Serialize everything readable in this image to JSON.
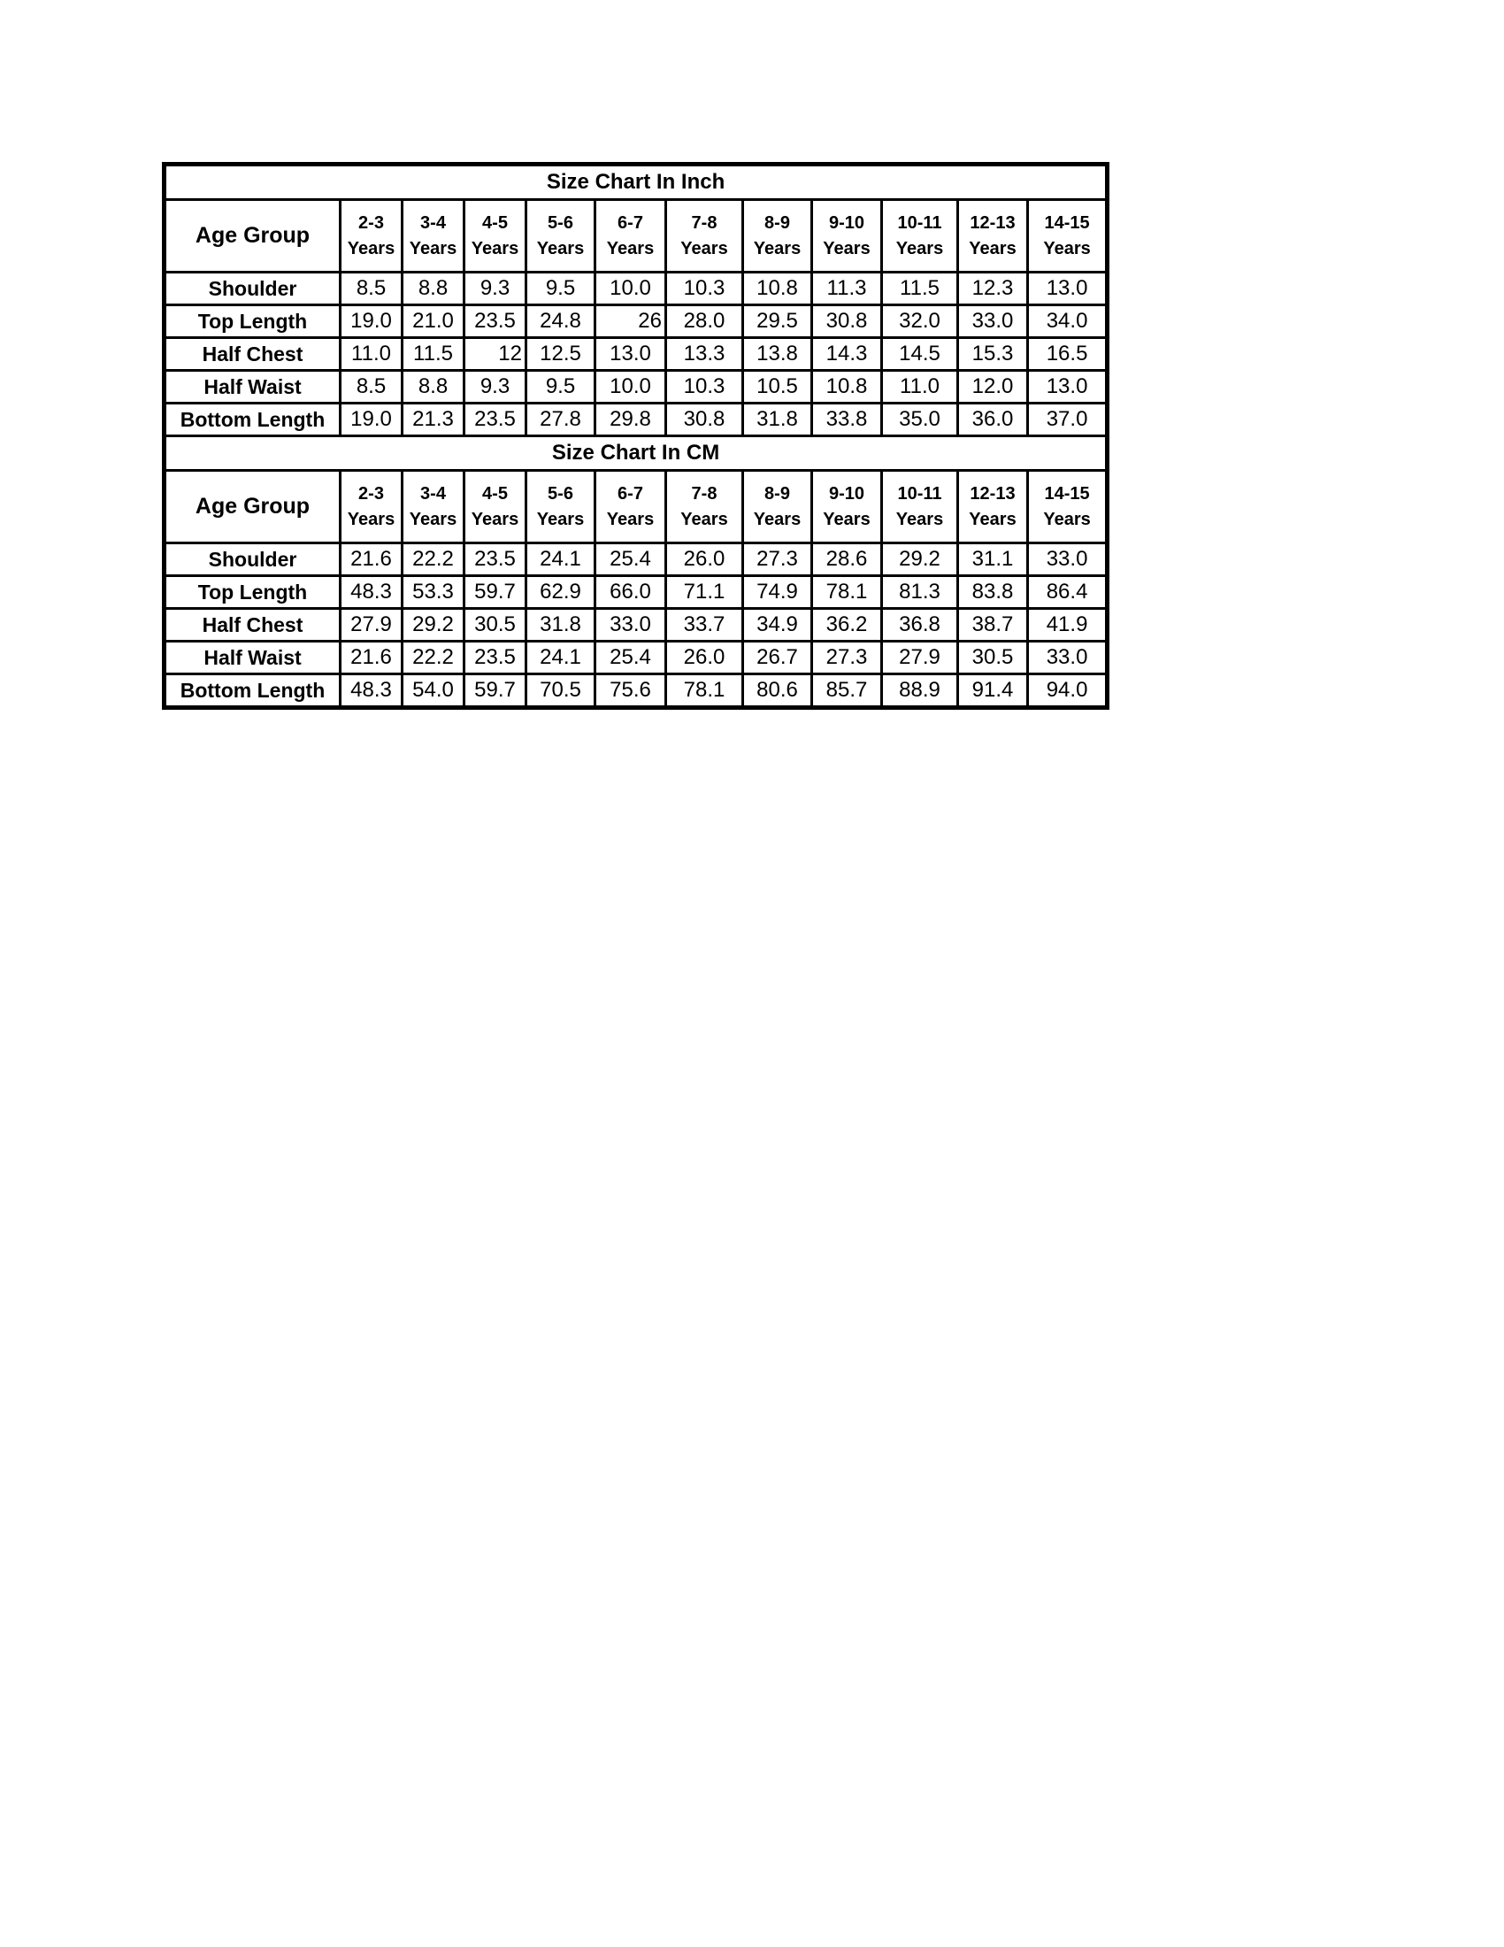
{
  "page": {
    "background": "#ffffff",
    "text_color": "#000000",
    "border_color": "#000000"
  },
  "size_chart": {
    "age_group_label": "Age Group",
    "columns": [
      {
        "range": "2-3",
        "unit": "Years"
      },
      {
        "range": "3-4",
        "unit": "Years"
      },
      {
        "range": "4-5",
        "unit": "Years"
      },
      {
        "range": "5-6",
        "unit": "Years"
      },
      {
        "range": "6-7",
        "unit": "Years"
      },
      {
        "range": "7-8",
        "unit": "Years"
      },
      {
        "range": "8-9",
        "unit": "Years"
      },
      {
        "range": "9-10",
        "unit": "Years"
      },
      {
        "range": "10-11",
        "unit": "Years"
      },
      {
        "range": "12-13",
        "unit": "Years"
      },
      {
        "range": "14-15",
        "unit": "Years"
      }
    ],
    "sections": [
      {
        "title": "Size Chart In Inch",
        "rows": [
          {
            "label": "Shoulder",
            "values": [
              "8.5",
              "8.8",
              "9.3",
              "9.5",
              "10.0",
              "10.3",
              "10.8",
              "11.3",
              "11.5",
              "12.3",
              "13.0"
            ]
          },
          {
            "label": "Top Length",
            "values": [
              "19.0",
              "21.0",
              "23.5",
              "24.8",
              "26",
              "28.0",
              "29.5",
              "30.8",
              "32.0",
              "33.0",
              "34.0"
            ]
          },
          {
            "label": "Half Chest",
            "values": [
              "11.0",
              "11.5",
              "12",
              "12.5",
              "13.0",
              "13.3",
              "13.8",
              "14.3",
              "14.5",
              "15.3",
              "16.5"
            ]
          },
          {
            "label": "Half Waist",
            "values": [
              "8.5",
              "8.8",
              "9.3",
              "9.5",
              "10.0",
              "10.3",
              "10.5",
              "10.8",
              "11.0",
              "12.0",
              "13.0"
            ]
          },
          {
            "label": "Bottom Length",
            "values": [
              "19.0",
              "21.3",
              "23.5",
              "27.8",
              "29.8",
              "30.8",
              "31.8",
              "33.8",
              "35.0",
              "36.0",
              "37.0"
            ]
          }
        ],
        "right_aligned_cells": [
          [
            1,
            4
          ],
          [
            2,
            2
          ]
        ]
      },
      {
        "title": "Size Chart In CM",
        "rows": [
          {
            "label": "Shoulder",
            "values": [
              "21.6",
              "22.2",
              "23.5",
              "24.1",
              "25.4",
              "26.0",
              "27.3",
              "28.6",
              "29.2",
              "31.1",
              "33.0"
            ]
          },
          {
            "label": "Top Length",
            "values": [
              "48.3",
              "53.3",
              "59.7",
              "62.9",
              "66.0",
              "71.1",
              "74.9",
              "78.1",
              "81.3",
              "83.8",
              "86.4"
            ]
          },
          {
            "label": "Half Chest",
            "values": [
              "27.9",
              "29.2",
              "30.5",
              "31.8",
              "33.0",
              "33.7",
              "34.9",
              "36.2",
              "36.8",
              "38.7",
              "41.9"
            ]
          },
          {
            "label": "Half Waist",
            "values": [
              "21.6",
              "22.2",
              "23.5",
              "24.1",
              "25.4",
              "26.0",
              "26.7",
              "27.3",
              "27.9",
              "30.5",
              "33.0"
            ]
          },
          {
            "label": "Bottom Length",
            "values": [
              "48.3",
              "54.0",
              "59.7",
              "70.5",
              "75.6",
              "78.1",
              "80.6",
              "85.7",
              "88.9",
              "91.4",
              "94.0"
            ]
          }
        ],
        "right_aligned_cells": []
      }
    ]
  }
}
